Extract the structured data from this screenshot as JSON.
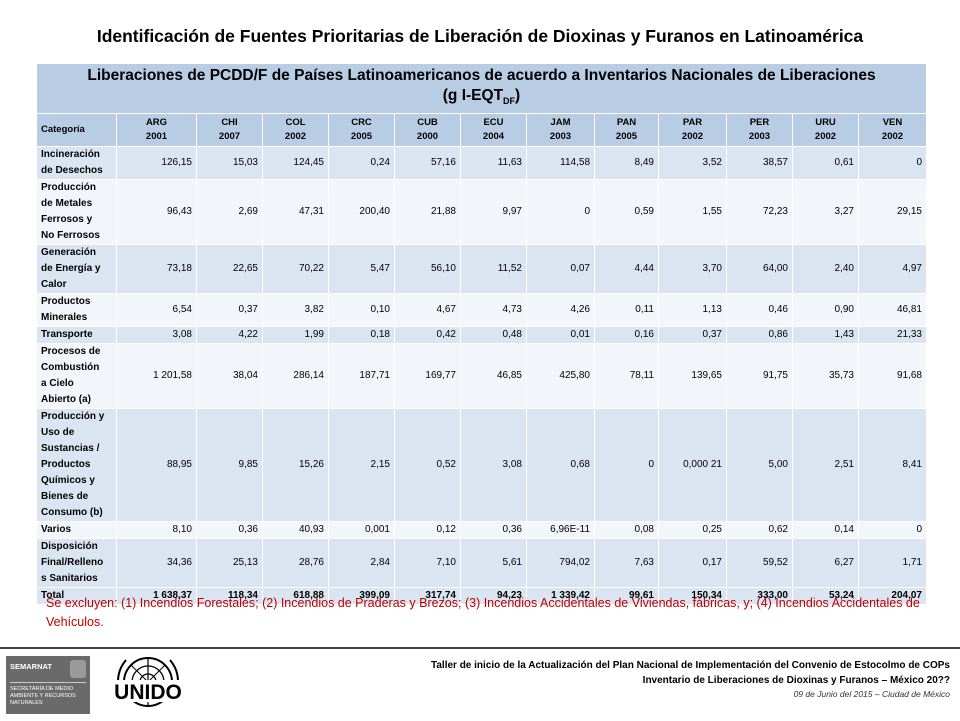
{
  "title": "Identificación de Fuentes Prioritarias de Liberación de Dioxinas y Furanos en Latinoamérica",
  "table": {
    "caption_line1": "Liberaciones de PCDD/F de Países Latinoamericanos de acuerdo a Inventarios Nacionales de Liberaciones",
    "caption_unit_prefix": "(g I-EQT",
    "caption_unit_sub": "DF",
    "caption_unit_suffix": ")",
    "category_header": "Categoría",
    "countries": [
      {
        "code": "ARG",
        "year": "2001"
      },
      {
        "code": "CHI",
        "year": "2007"
      },
      {
        "code": "COL",
        "year": "2002"
      },
      {
        "code": "CRC",
        "year": "2005"
      },
      {
        "code": "CUB",
        "year": "2000"
      },
      {
        "code": "ECU",
        "year": "2004"
      },
      {
        "code": "JAM",
        "year": "2003"
      },
      {
        "code": "PAN",
        "year": "2005"
      },
      {
        "code": "PAR",
        "year": "2002"
      },
      {
        "code": "PER",
        "year": "2003"
      },
      {
        "code": "URU",
        "year": "2002"
      },
      {
        "code": "VEN",
        "year": "2002"
      }
    ],
    "rows": [
      {
        "lines": [
          "Incineración",
          "de Desechos"
        ],
        "values": [
          "126,15",
          "15,03",
          "124,45",
          "0,24",
          "57,16",
          "11,63",
          "114,58",
          "8,49",
          "3,52",
          "38,57",
          "0,61",
          "0"
        ]
      },
      {
        "lines": [
          "Producción",
          "de Metales",
          "Ferrosos y",
          "No Ferrosos"
        ],
        "values": [
          "96,43",
          "2,69",
          "47,31",
          "200,40",
          "21,88",
          "9,97",
          "0",
          "0,59",
          "1,55",
          "72,23",
          "3,27",
          "29,15"
        ]
      },
      {
        "lines": [
          "Generación",
          "de Energía y",
          "Calor"
        ],
        "values": [
          "73,18",
          "22,65",
          "70,22",
          "5,47",
          "56,10",
          "11,52",
          "0,07",
          "4,44",
          "3,70",
          "64,00",
          "2,40",
          "4,97"
        ]
      },
      {
        "lines": [
          "Productos",
          "Minerales"
        ],
        "values": [
          "6,54",
          "0,37",
          "3,82",
          "0,10",
          "4,67",
          "4,73",
          "4,26",
          "0,11",
          "1,13",
          "0,46",
          "0,90",
          "46,81"
        ]
      },
      {
        "lines": [
          "Transporte"
        ],
        "values": [
          "3,08",
          "4,22",
          "1,99",
          "0,18",
          "0,42",
          "0,48",
          "0,01",
          "0,16",
          "0,37",
          "0,86",
          "1,43",
          "21,33"
        ]
      },
      {
        "lines": [
          "Procesos de",
          "Combustión",
          "a Cielo",
          "Abierto (a)"
        ],
        "values": [
          "1 201,58",
          "38,04",
          "286,14",
          "187,71",
          "169,77",
          "46,85",
          "425,80",
          "78,11",
          "139,65",
          "91,75",
          "35,73",
          "91,68"
        ]
      },
      {
        "lines": [
          "Producción y",
          "Uso de",
          "Sustancias /",
          "Productos",
          "Químicos y",
          "Bienes de",
          "Consumo (b)"
        ],
        "values": [
          "88,95",
          "9,85",
          "15,26",
          "2,15",
          "0,52",
          "3,08",
          "0,68",
          "0",
          "0,000 21",
          "5,00",
          "2,51",
          "8,41"
        ]
      },
      {
        "lines": [
          "Varios"
        ],
        "values": [
          "8,10",
          "0,36",
          "40,93",
          "0,001",
          "0,12",
          "0,36",
          "6,96E-11",
          "0,08",
          "0,25",
          "0,62",
          "0,14",
          "0"
        ]
      },
      {
        "lines": [
          "Disposición",
          "Final/Relleno",
          "s Sanitarios"
        ],
        "values": [
          "34,36",
          "25,13",
          "28,76",
          "2,84",
          "7,10",
          "5,61",
          "794,02",
          "7,63",
          "0,17",
          "59,52",
          "6,27",
          "1,71"
        ]
      }
    ],
    "total": {
      "label": "Total",
      "values": [
        "1 638,37",
        "118,34",
        "618,88",
        "399,09",
        "317,74",
        "94,23",
        "1 339,42",
        "99,61",
        "150,34",
        "333,00",
        "53,24",
        "204,07"
      ]
    }
  },
  "note": "Se excluyen: (1) Incendios Forestales; (2) Incendios de Praderas y Brezos; (3) Incendios Accidentales de Viviendas, fábricas, y; (4) Incendios Accidentales de Vehículos.",
  "logos": {
    "semarnat_name": "SEMARNAT",
    "semarnat_subtitle": "SECRETARÍA DE MEDIO AMBIENTE Y RECURSOS NATURALES",
    "unido_text": "UNIDO"
  },
  "footer": {
    "line1": "Taller de inicio de la Actualización  del Plan Nacional  de Implementación del Convenio de Estocolmo de COPs",
    "line2": "Inventario de Liberaciones de Dioxinas y Furanos – México 20??",
    "line3": "09 de Junio del 2015 – Ciudad de México"
  },
  "colors": {
    "header_fill": "#b8cce4",
    "row_fill_odd": "#dbe5f1",
    "row_fill_even": "#f2f6fb",
    "note_text": "#c00000"
  }
}
